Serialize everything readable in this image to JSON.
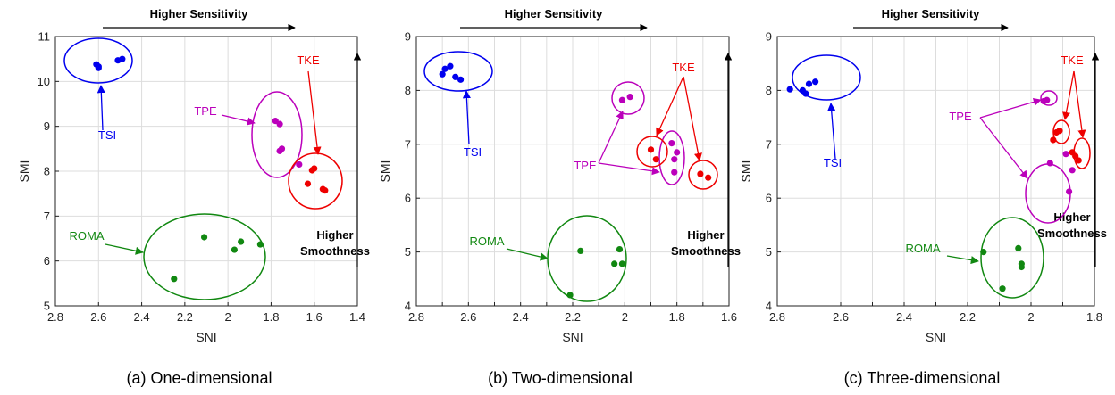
{
  "captions": [
    "(a) One-dimensional",
    "(b) Two-dimensional",
    "(c) Three-dimensional"
  ],
  "annotations": {
    "sensitivity": "Higher Sensitivity",
    "smoothness_line1": "Higher",
    "smoothness_line2": "Smoothness"
  },
  "colors": {
    "TSI": "#0000ee",
    "TPE": "#bb00bb",
    "TKE": "#ee0000",
    "ROMA": "#118811",
    "grid": "#dddddd"
  },
  "chart_data": [
    {
      "type": "scatter",
      "xlabel": "SNI",
      "ylabel": "SMI",
      "xlim": [
        2.8,
        1.4
      ],
      "ylim": [
        5,
        11
      ],
      "x_reversed": true,
      "xticks": [
        2.8,
        2.6,
        2.4,
        2.2,
        2,
        1.8,
        1.6,
        1.4
      ],
      "xtick_labels": [
        "2.8",
        "2.6",
        "2.4",
        "2.2",
        "2",
        "1.8",
        "1.6",
        "1.4"
      ],
      "yticks": [
        5,
        6,
        7,
        8,
        9,
        10,
        11
      ],
      "ytick_labels": [
        "5",
        "6",
        "7",
        "8",
        "9",
        "10",
        "11"
      ],
      "grid": true,
      "series": [
        {
          "name": "TSI",
          "x": [
            2.61,
            2.6,
            2.6,
            2.51,
            2.49
          ],
          "y": [
            10.38,
            10.3,
            10.33,
            10.47,
            10.5
          ]
        },
        {
          "name": "TPE",
          "x": [
            1.78,
            1.76,
            1.76,
            1.75,
            1.67
          ],
          "y": [
            9.12,
            9.05,
            8.45,
            8.5,
            8.15
          ]
        },
        {
          "name": "TKE",
          "x": [
            1.63,
            1.61,
            1.6,
            1.56,
            1.55
          ],
          "y": [
            7.72,
            8.02,
            8.06,
            7.6,
            7.57
          ]
        },
        {
          "name": "ROMA",
          "x": [
            2.25,
            2.11,
            1.97,
            1.94,
            1.85
          ],
          "y": [
            5.6,
            6.53,
            6.25,
            6.43,
            6.37
          ]
        }
      ],
      "group_labels": [
        {
          "text": "TSI",
          "series": "TSI"
        },
        {
          "text": "TPE",
          "series": "TPE"
        },
        {
          "text": "TKE",
          "series": "TKE"
        },
        {
          "text": "ROMA",
          "series": "ROMA"
        }
      ]
    },
    {
      "type": "scatter",
      "xlabel": "SNI",
      "ylabel": "SMI",
      "xlim": [
        2.8,
        1.6
      ],
      "ylim": [
        4,
        9
      ],
      "x_reversed": true,
      "xticks": [
        2.8,
        2.7,
        2.6,
        2.5,
        2.4,
        2.3,
        2.2,
        2.1,
        2,
        1.9,
        1.8,
        1.7,
        1.6
      ],
      "xtick_labels": [
        "2.8",
        "",
        "2.6",
        "",
        "2.4",
        "",
        "2.2",
        "",
        "2",
        "",
        "1.8",
        "",
        "1.6"
      ],
      "yticks": [
        4,
        5,
        6,
        7,
        8,
        9
      ],
      "ytick_labels": [
        "4",
        "5",
        "6",
        "7",
        "8",
        "9"
      ],
      "grid": true,
      "series": [
        {
          "name": "TSI",
          "x": [
            2.7,
            2.69,
            2.67,
            2.65,
            2.63
          ],
          "y": [
            8.3,
            8.4,
            8.45,
            8.25,
            8.2
          ]
        },
        {
          "name": "TPE",
          "x": [
            2.01,
            1.98,
            1.82,
            1.81,
            1.81,
            1.8
          ],
          "y": [
            7.82,
            7.88,
            7.02,
            6.72,
            6.48,
            6.85
          ]
        },
        {
          "name": "TKE",
          "x": [
            1.9,
            1.88,
            1.71,
            1.68
          ],
          "y": [
            6.9,
            6.72,
            6.45,
            6.38
          ]
        },
        {
          "name": "ROMA",
          "x": [
            2.21,
            2.17,
            2.04,
            2.02,
            2.01
          ],
          "y": [
            4.2,
            5.02,
            4.78,
            5.05,
            4.78
          ]
        }
      ],
      "group_labels": [
        {
          "text": "TSI",
          "series": "TSI"
        },
        {
          "text": "TPE",
          "series": "TPE"
        },
        {
          "text": "TKE",
          "series": "TKE"
        },
        {
          "text": "ROMA",
          "series": "ROMA"
        }
      ]
    },
    {
      "type": "scatter",
      "xlabel": "SNI",
      "ylabel": "SMI",
      "xlim": [
        2.8,
        1.8
      ],
      "ylim": [
        4,
        9
      ],
      "x_reversed": true,
      "xticks": [
        2.8,
        2.7,
        2.6,
        2.5,
        2.4,
        2.3,
        2.2,
        2.1,
        2,
        1.9,
        1.8
      ],
      "xtick_labels": [
        "2.8",
        "",
        "2.6",
        "",
        "2.4",
        "",
        "2.2",
        "",
        "2",
        "",
        "1.8"
      ],
      "yticks": [
        4,
        5,
        6,
        7,
        8,
        9
      ],
      "ytick_labels": [
        "4",
        "5",
        "6",
        "7",
        "8",
        "9"
      ],
      "grid": true,
      "series": [
        {
          "name": "TSI",
          "x": [
            2.76,
            2.72,
            2.71,
            2.7,
            2.68
          ],
          "y": [
            8.02,
            8.0,
            7.94,
            8.12,
            8.16
          ]
        },
        {
          "name": "TPE",
          "x": [
            1.96,
            1.95,
            1.94,
            1.89,
            1.88,
            1.87
          ],
          "y": [
            7.8,
            7.82,
            6.65,
            6.82,
            6.12,
            6.52
          ]
        },
        {
          "name": "TKE",
          "x": [
            1.93,
            1.92,
            1.91,
            1.87,
            1.86,
            1.85
          ],
          "y": [
            7.08,
            7.22,
            7.25,
            6.85,
            6.78,
            6.7
          ]
        },
        {
          "name": "ROMA",
          "x": [
            2.15,
            2.09,
            2.04,
            2.03,
            2.03
          ],
          "y": [
            5.0,
            4.32,
            5.07,
            4.72,
            4.78
          ]
        }
      ],
      "group_labels": [
        {
          "text": "TSI",
          "series": "TSI"
        },
        {
          "text": "TPE",
          "series": "TPE"
        },
        {
          "text": "TKE",
          "series": "TKE"
        },
        {
          "text": "ROMA",
          "series": "ROMA"
        }
      ]
    }
  ]
}
